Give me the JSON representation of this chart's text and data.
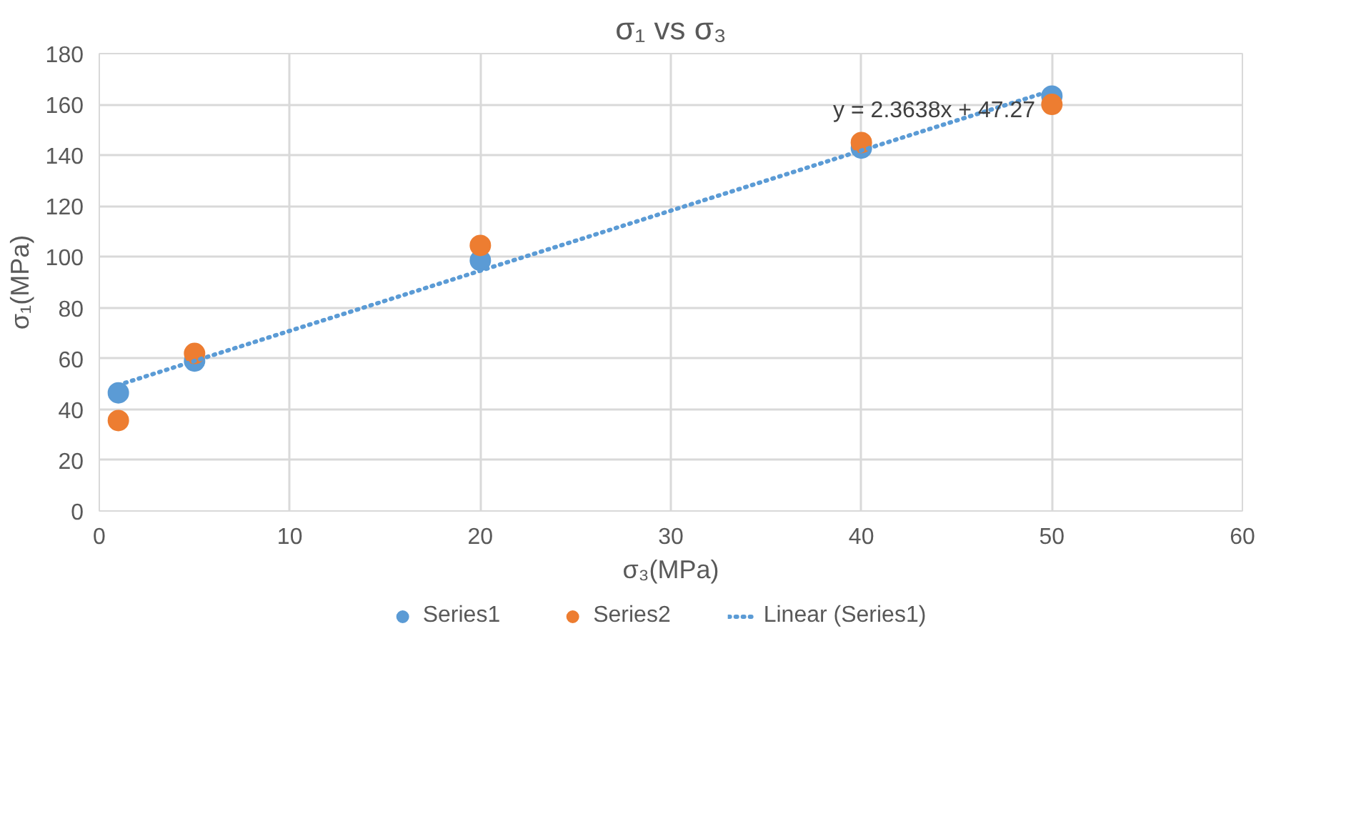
{
  "chart_data": {
    "type": "scatter",
    "title": "σ₁ vs σ₃",
    "xlabel": "σ₃(MPa)",
    "ylabel": "σ₁(MPa)",
    "xlim": [
      0,
      60
    ],
    "xticks": [
      0,
      10,
      20,
      30,
      40,
      50,
      60
    ],
    "ylim": [
      0,
      180
    ],
    "yticks": [
      0,
      20,
      40,
      60,
      80,
      100,
      120,
      140,
      160,
      180
    ],
    "grid": true,
    "legend": "bottom",
    "marker": "circle",
    "series": [
      {
        "name": "Series1",
        "color": "#5b9bd5",
        "x": [
          1,
          5,
          20,
          40,
          50
        ],
        "values": [
          46.5,
          59,
          98.6,
          142.8,
          163.3
        ]
      },
      {
        "name": "Series2",
        "color": "#ed7d31",
        "x": [
          1,
          5,
          20,
          40,
          50
        ],
        "values": [
          35.6,
          62,
          104.5,
          145,
          160
        ]
      },
      {
        "name": "Linear (Series1)",
        "type": "line",
        "marker": "none",
        "line_style": "dotted",
        "color": "#5b9bd5",
        "x": [
          1,
          50
        ],
        "values": [
          49.6,
          165.5
        ]
      }
    ],
    "annotations": [
      "y = 2.3638x + 47.27"
    ]
  }
}
